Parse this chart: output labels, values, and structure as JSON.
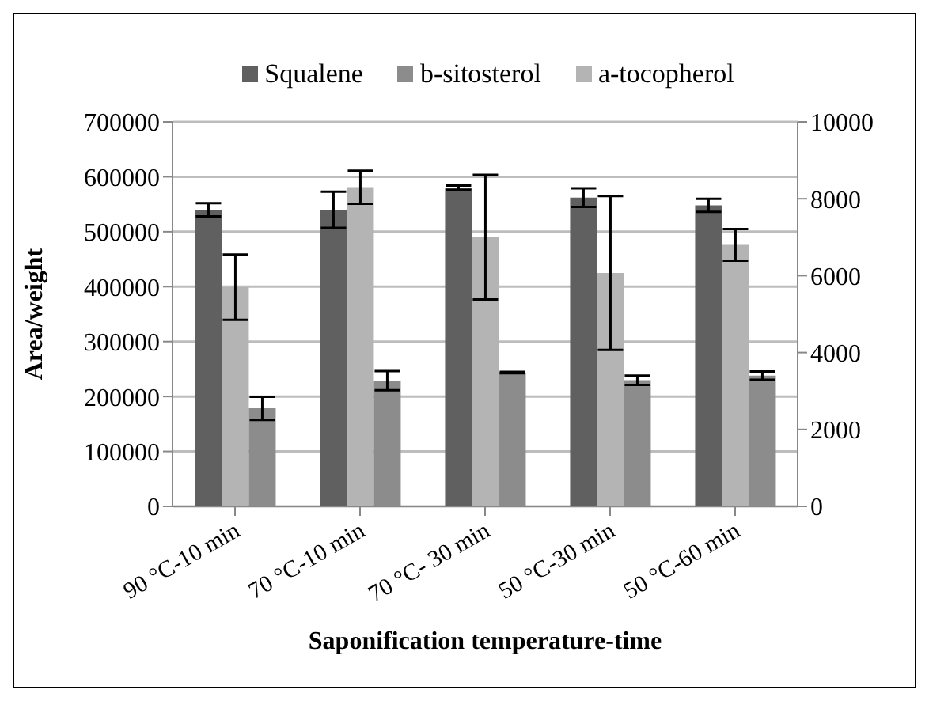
{
  "chart_data": {
    "type": "bar",
    "xlabel": "Saponification temperature-time",
    "ylabel": "Area/weight",
    "categories": [
      "90 °C-10 min",
      "70 °C-10 min",
      "70 °C- 30 min",
      "50 °C-30 min",
      "50 °C-60 min"
    ],
    "series": [
      {
        "name": "Squalene",
        "color": "#606060",
        "values": [
          540000,
          540000,
          580000,
          562000,
          548000
        ],
        "errors": [
          12000,
          33000,
          4000,
          17000,
          12000
        ]
      },
      {
        "name": "b-sitosterol",
        "color": "#8c8c8c",
        "axis": "y2",
        "values": [
          2550,
          3270,
          3480,
          3280,
          3400
        ],
        "errors": [
          300,
          250,
          20,
          120,
          110
        ]
      },
      {
        "name": "a-tocopherol",
        "color": "#b4b4b4",
        "axis": "y2",
        "values": [
          5700,
          8300,
          7000,
          6070,
          6800
        ],
        "errors": [
          850,
          430,
          1620,
          2000,
          410
        ]
      }
    ],
    "ylim": [
      0,
      700000
    ],
    "yticks": [
      0,
      100000,
      200000,
      300000,
      400000,
      500000,
      600000,
      700000
    ],
    "y2lim": [
      0,
      10000
    ],
    "y2ticks": [
      0,
      2000,
      4000,
      6000,
      8000,
      10000
    ],
    "grid": "y",
    "legend": "top"
  }
}
